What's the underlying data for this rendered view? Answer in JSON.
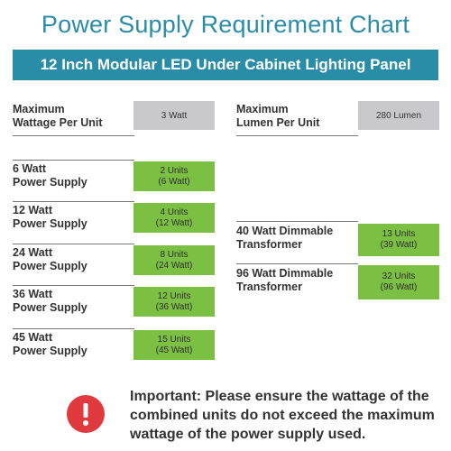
{
  "title": "Power Supply Requirement Chart",
  "banner": "12 Inch Modular LED Under Cabinet Lighting Panel",
  "specs": {
    "wattage_label": "Maximum\nWattage Per Unit",
    "wattage_value": "3 Watt",
    "lumen_label": "Maximum\nLumen Per Unit",
    "lumen_value": "280 Lumen"
  },
  "power_supplies": [
    {
      "label": "6 Watt\nPower Supply",
      "units": "2 Units",
      "watt": "(6 Watt)"
    },
    {
      "label": "12 Watt\nPower Supply",
      "units": "4 Units",
      "watt": "(12 Watt)"
    },
    {
      "label": "24 Watt\nPower Supply",
      "units": "8 Units",
      "watt": "(24 Watt)"
    },
    {
      "label": "36 Watt\nPower Supply",
      "units": "12 Units",
      "watt": "(36 Watt)"
    },
    {
      "label": "45 Watt\nPower Supply",
      "units": "15 Units",
      "watt": "(45 Watt)"
    }
  ],
  "transformers": [
    {
      "label": "40 Watt Dimmable\nTransformer",
      "units": "13 Units",
      "watt": "(39 Watt)"
    },
    {
      "label": "96 Watt Dimmable\nTransformer",
      "units": "32 Units",
      "watt": "(96 Watt)"
    }
  ],
  "notice": "Important: Please ensure the wattage of the\ncombined units do not exceed the maximum\nwattage of the power supply used.",
  "colors": {
    "accent": "#2a8da8",
    "green": "#7cc043",
    "grey": "#c9c9cb",
    "warning": "#e03a3e"
  },
  "icons": {
    "warning": "exclamation-circle-icon"
  }
}
